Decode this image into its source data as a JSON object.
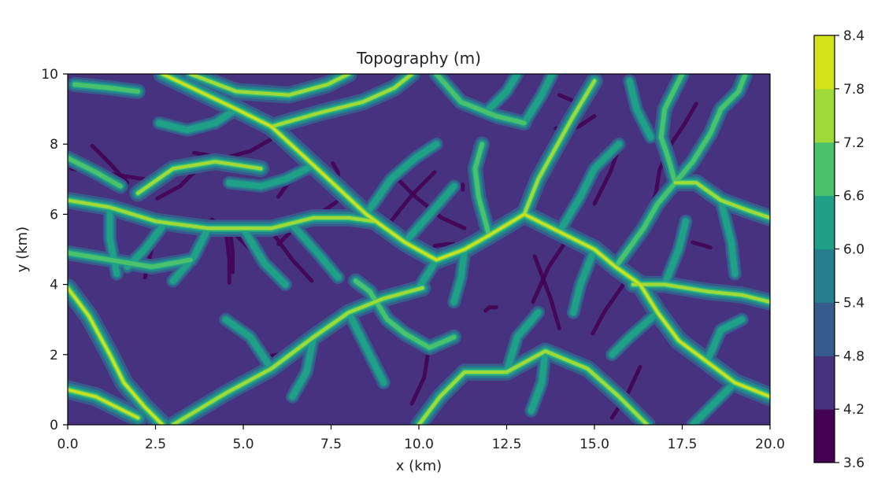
{
  "chart_data": {
    "type": "heatmap",
    "subtype": "filled-contour",
    "title": "Topography (m)",
    "xlabel": "x (km)",
    "ylabel": "y (km)",
    "xlim": [
      0,
      20
    ],
    "ylim": [
      0,
      10
    ],
    "x_ticks": [
      0,
      2.5,
      5,
      7.5,
      10,
      12.5,
      15,
      17.5,
      20
    ],
    "x_tick_labels": [
      "0.0",
      "2.5",
      "5.0",
      "7.5",
      "10.0",
      "12.5",
      "15.0",
      "17.5",
      "20.0"
    ],
    "y_ticks": [
      0,
      2,
      4,
      6,
      8,
      10
    ],
    "y_tick_labels": [
      "0",
      "2",
      "4",
      "6",
      "8",
      "10"
    ],
    "colorbar": {
      "levels": [
        3.6,
        4.2,
        4.8,
        5.4,
        6.0,
        6.6,
        7.2,
        7.8,
        8.4
      ],
      "tick_labels": [
        "3.6",
        "4.2",
        "4.8",
        "5.4",
        "6.0",
        "6.6",
        "7.2",
        "7.8",
        "8.4"
      ],
      "colors": [
        "#440154",
        "#46327e",
        "#365c8d",
        "#277f8e",
        "#1fa187",
        "#4ac16d",
        "#a0da39",
        "#d2e21b"
      ]
    },
    "grid": false,
    "ridges": [
      {
        "level": 7.8,
        "points": [
          [
            2.7,
            10
          ],
          [
            4.8,
            9.0
          ],
          [
            5.8,
            8.5
          ],
          [
            7.0,
            7.4
          ],
          [
            8.5,
            6.0
          ],
          [
            9.6,
            5.2
          ],
          [
            10.5,
            4.7
          ],
          [
            11.3,
            5.0
          ],
          [
            12.0,
            5.4
          ],
          [
            13.0,
            6.0
          ],
          [
            14.0,
            5.5
          ],
          [
            15.0,
            5.0
          ],
          [
            15.6,
            4.5
          ],
          [
            16.3,
            4.0
          ],
          [
            16.8,
            3.2
          ],
          [
            17.4,
            2.4
          ],
          [
            18.2,
            1.8
          ],
          [
            19.0,
            1.2
          ],
          [
            20,
            0.8
          ]
        ]
      },
      {
        "level": 7.8,
        "points": [
          [
            0,
            3.9
          ],
          [
            0.6,
            3.1
          ],
          [
            1.2,
            2.0
          ],
          [
            1.6,
            1.2
          ],
          [
            2.2,
            0.5
          ],
          [
            2.7,
            0
          ]
        ]
      },
      {
        "level": 7.8,
        "points": [
          [
            0,
            1.0
          ],
          [
            0.8,
            0.8
          ],
          [
            1.4,
            0.5
          ],
          [
            2.0,
            0.2
          ]
        ]
      },
      {
        "level": 7.2,
        "points": [
          [
            0,
            6.4
          ],
          [
            1.2,
            6.2
          ],
          [
            2.5,
            5.8
          ],
          [
            4.0,
            5.6
          ],
          [
            5.8,
            5.6
          ],
          [
            7.0,
            5.9
          ],
          [
            8.0,
            5.9
          ],
          [
            8.7,
            5.8
          ]
        ]
      },
      {
        "level": 7.2,
        "points": [
          [
            5.8,
            8.5
          ],
          [
            7.2,
            8.9
          ],
          [
            8.4,
            9.2
          ],
          [
            9.3,
            9.6
          ],
          [
            9.8,
            10
          ]
        ]
      },
      {
        "level": 7.2,
        "points": [
          [
            3.5,
            10
          ],
          [
            4.8,
            9.5
          ],
          [
            6.3,
            9.4
          ],
          [
            7.4,
            9.7
          ],
          [
            8.0,
            10
          ]
        ]
      },
      {
        "level": 7.2,
        "points": [
          [
            10.0,
            0
          ],
          [
            10.6,
            0.8
          ],
          [
            11.3,
            1.5
          ],
          [
            12.5,
            1.5
          ],
          [
            13.6,
            2.1
          ],
          [
            14.8,
            1.6
          ],
          [
            15.7,
            0.8
          ],
          [
            16.5,
            0
          ]
        ]
      },
      {
        "level": 7.2,
        "points": [
          [
            3.0,
            0
          ],
          [
            4.5,
            0.9
          ],
          [
            5.8,
            1.6
          ],
          [
            7.0,
            2.5
          ],
          [
            8.0,
            3.2
          ],
          [
            9.0,
            3.6
          ],
          [
            10.1,
            3.9
          ]
        ]
      },
      {
        "level": 7.2,
        "points": [
          [
            17.3,
            6.9
          ],
          [
            17.9,
            6.9
          ],
          [
            18.6,
            6.4
          ],
          [
            19.4,
            6.1
          ],
          [
            20,
            5.9
          ]
        ]
      },
      {
        "level": 7.2,
        "points": [
          [
            16.1,
            4.0
          ],
          [
            17.0,
            4.0
          ],
          [
            18.2,
            3.8
          ],
          [
            19.2,
            3.7
          ],
          [
            20,
            3.5
          ]
        ]
      },
      {
        "level": 7.2,
        "points": [
          [
            13.0,
            6.0
          ],
          [
            13.4,
            7.0
          ],
          [
            13.9,
            7.9
          ],
          [
            14.4,
            8.8
          ],
          [
            15.0,
            9.8
          ]
        ]
      },
      {
        "level": 7.2,
        "points": [
          [
            2.0,
            6.6
          ],
          [
            3.0,
            7.3
          ],
          [
            4.2,
            7.5
          ],
          [
            5.5,
            7.3
          ]
        ]
      },
      {
        "level": 6.6,
        "points": [
          [
            15.6,
            4.5
          ],
          [
            16.4,
            5.6
          ],
          [
            16.8,
            6.3
          ],
          [
            17.3,
            6.9
          ],
          [
            17.8,
            7.5
          ],
          [
            18.3,
            8.3
          ],
          [
            18.6,
            9.0
          ],
          [
            19.1,
            9.5
          ],
          [
            19.3,
            10
          ]
        ]
      },
      {
        "level": 6.6,
        "points": [
          [
            17.3,
            6.9
          ],
          [
            17.1,
            7.6
          ],
          [
            16.9,
            8.2
          ],
          [
            17.0,
            9.0
          ],
          [
            17.3,
            9.6
          ],
          [
            17.5,
            10
          ]
        ]
      },
      {
        "level": 6.6,
        "points": [
          [
            10.5,
            10
          ],
          [
            11.2,
            9.2
          ],
          [
            12.2,
            8.8
          ],
          [
            13.0,
            8.6
          ]
        ]
      },
      {
        "level": 6.6,
        "points": [
          [
            8.2,
            4.1
          ],
          [
            8.6,
            3.8
          ],
          [
            9.1,
            3.0
          ],
          [
            9.6,
            2.6
          ],
          [
            10.3,
            2.2
          ],
          [
            11.0,
            2.5
          ]
        ]
      },
      {
        "level": 6.6,
        "points": [
          [
            0,
            7.6
          ],
          [
            0.8,
            7.2
          ],
          [
            1.5,
            6.8
          ]
        ]
      },
      {
        "level": 6.6,
        "points": [
          [
            12.0,
            5.4
          ],
          [
            11.7,
            6.5
          ],
          [
            11.6,
            7.3
          ],
          [
            11.8,
            8.0
          ]
        ]
      },
      {
        "level": 6.6,
        "points": [
          [
            0,
            4.9
          ],
          [
            1.2,
            4.7
          ],
          [
            2.4,
            4.5
          ],
          [
            3.5,
            4.7
          ]
        ]
      },
      {
        "level": 6.6,
        "points": [
          [
            0.2,
            9.7
          ],
          [
            1.2,
            9.6
          ],
          [
            2.0,
            9.5
          ]
        ]
      },
      {
        "level": 6.0,
        "points": [
          [
            1.2,
            6.2
          ],
          [
            1.2,
            5.3
          ],
          [
            1.4,
            4.3
          ]
        ]
      },
      {
        "level": 6.0,
        "points": [
          [
            4.0,
            5.6
          ],
          [
            3.6,
            4.8
          ],
          [
            3.0,
            4.1
          ]
        ]
      },
      {
        "level": 6.0,
        "points": [
          [
            5.0,
            5.6
          ],
          [
            5.6,
            4.6
          ],
          [
            6.2,
            4.0
          ]
        ]
      },
      {
        "level": 6.0,
        "points": [
          [
            6.4,
            5.7
          ],
          [
            7.2,
            4.8
          ],
          [
            7.7,
            4.2
          ]
        ]
      },
      {
        "level": 6.0,
        "points": [
          [
            2.8,
            5.8
          ],
          [
            2.2,
            5.0
          ],
          [
            1.7,
            4.5
          ]
        ]
      },
      {
        "level": 6.0,
        "points": [
          [
            4.8,
            9.0
          ],
          [
            4.2,
            8.6
          ],
          [
            3.4,
            8.4
          ],
          [
            2.6,
            8.6
          ]
        ]
      },
      {
        "level": 6.0,
        "points": [
          [
            7.0,
            7.4
          ],
          [
            6.2,
            7.0
          ],
          [
            5.5,
            6.8
          ],
          [
            4.6,
            6.9
          ]
        ]
      },
      {
        "level": 6.0,
        "points": [
          [
            8.5,
            6.0
          ],
          [
            9.2,
            7.0
          ],
          [
            9.9,
            7.6
          ],
          [
            10.5,
            8.0
          ]
        ]
      },
      {
        "level": 6.0,
        "points": [
          [
            9.6,
            5.2
          ],
          [
            10.4,
            6.1
          ],
          [
            11.0,
            6.8
          ]
        ]
      },
      {
        "level": 6.0,
        "points": [
          [
            11.3,
            5.0
          ],
          [
            11.2,
            4.2
          ],
          [
            11.0,
            3.5
          ]
        ]
      },
      {
        "level": 6.0,
        "points": [
          [
            12.5,
            1.5
          ],
          [
            12.8,
            2.5
          ],
          [
            13.4,
            3.2
          ]
        ]
      },
      {
        "level": 6.0,
        "points": [
          [
            14.0,
            5.5
          ],
          [
            14.6,
            6.5
          ],
          [
            15.0,
            7.3
          ],
          [
            15.7,
            8.0
          ]
        ]
      },
      {
        "level": 6.0,
        "points": [
          [
            15.0,
            5.0
          ],
          [
            14.6,
            4.0
          ],
          [
            14.4,
            3.2
          ]
        ]
      },
      {
        "level": 6.0,
        "points": [
          [
            16.8,
            3.2
          ],
          [
            16.0,
            2.5
          ],
          [
            15.5,
            2.0
          ]
        ]
      },
      {
        "level": 6.0,
        "points": [
          [
            18.2,
            1.8
          ],
          [
            18.6,
            2.7
          ],
          [
            19.2,
            3.0
          ]
        ]
      },
      {
        "level": 6.0,
        "points": [
          [
            19.0,
            1.2
          ],
          [
            18.4,
            0.6
          ],
          [
            17.8,
            0
          ]
        ]
      },
      {
        "level": 6.0,
        "points": [
          [
            13.6,
            2.1
          ],
          [
            13.5,
            1.2
          ],
          [
            13.2,
            0.4
          ]
        ]
      },
      {
        "level": 6.0,
        "points": [
          [
            7.0,
            2.5
          ],
          [
            6.8,
            1.5
          ],
          [
            6.4,
            0.8
          ]
        ]
      },
      {
        "level": 6.0,
        "points": [
          [
            5.8,
            1.6
          ],
          [
            5.2,
            2.5
          ],
          [
            4.5,
            3.0
          ]
        ]
      },
      {
        "level": 6.0,
        "points": [
          [
            8.0,
            3.2
          ],
          [
            8.6,
            2.0
          ],
          [
            9.0,
            1.2
          ]
        ]
      },
      {
        "level": 6.0,
        "points": [
          [
            18.6,
            6.4
          ],
          [
            18.9,
            5.2
          ],
          [
            19.0,
            4.3
          ]
        ]
      },
      {
        "level": 6.0,
        "points": [
          [
            17.0,
            4.0
          ],
          [
            17.4,
            5.0
          ],
          [
            17.6,
            5.8
          ]
        ]
      },
      {
        "level": 6.0,
        "points": [
          [
            13.0,
            8.6
          ],
          [
            13.5,
            9.4
          ],
          [
            13.8,
            10
          ]
        ]
      },
      {
        "level": 6.0,
        "points": [
          [
            10.5,
            4.7
          ],
          [
            10.0,
            3.9
          ]
        ]
      },
      {
        "level": 6.0,
        "points": [
          [
            12.0,
            9.0
          ],
          [
            12.5,
            9.5
          ],
          [
            12.8,
            10
          ]
        ]
      },
      {
        "level": 6.0,
        "points": [
          [
            16.0,
            9.8
          ],
          [
            16.2,
            9.0
          ],
          [
            16.6,
            8.2
          ]
        ]
      }
    ]
  }
}
